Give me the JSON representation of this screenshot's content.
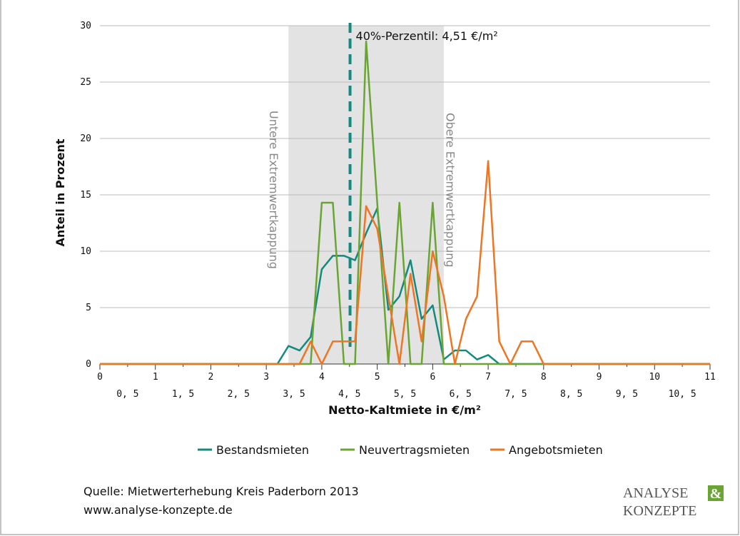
{
  "chart_data": {
    "type": "line",
    "x": [
      0,
      3.0,
      3.2,
      3.4,
      3.6,
      3.8,
      4.0,
      4.2,
      4.4,
      4.6,
      4.8,
      5.0,
      5.2,
      5.4,
      5.6,
      5.8,
      6.0,
      6.2,
      6.4,
      6.6,
      6.8,
      7.0,
      7.2,
      7.4,
      7.6,
      7.8,
      8.0,
      11
    ],
    "series": [
      {
        "name": "Bestandsmieten",
        "color": "#138a7e",
        "values": [
          0,
          0,
          0,
          1.6,
          1.2,
          2.4,
          8.4,
          9.6,
          9.6,
          9.2,
          11.6,
          13.8,
          4.8,
          6,
          9.2,
          4,
          5.2,
          0.4,
          1.2,
          1.2,
          0.4,
          0.8,
          0,
          0,
          0,
          0,
          0,
          0
        ]
      },
      {
        "name": "Neuvertragsmieten",
        "color": "#6aa534",
        "values": [
          0,
          0,
          0,
          0,
          0,
          0,
          14.3,
          14.3,
          0,
          0,
          28.6,
          14.3,
          0,
          14.3,
          0,
          0,
          14.3,
          0,
          0,
          0,
          0,
          0,
          0,
          0,
          0,
          0,
          0,
          0
        ]
      },
      {
        "name": "Angebotsmieten",
        "color": "#ee7623",
        "values": [
          0,
          0,
          0,
          0,
          0,
          2,
          0,
          2,
          2,
          2,
          14,
          12,
          6,
          0,
          8,
          2,
          10,
          6,
          0,
          4,
          6,
          18,
          2,
          0,
          2,
          2,
          0,
          0
        ]
      }
    ],
    "xlim": [
      0,
      11
    ],
    "ylim": [
      0,
      30
    ],
    "yticks": [
      0,
      5,
      10,
      15,
      20,
      25,
      30
    ],
    "xticks": [
      0,
      {
        "value": 0.5,
        "label": "0, 5"
      },
      1,
      {
        "value": 1.5,
        "label": "1, 5"
      },
      2,
      {
        "value": 2.5,
        "label": "2, 5"
      },
      3,
      {
        "value": 3.5,
        "label": "3, 5"
      },
      4,
      {
        "value": 4.5,
        "label": "4, 5"
      },
      5,
      {
        "value": 5.5,
        "label": "5, 5"
      },
      6,
      {
        "value": 6.5,
        "label": "6, 5"
      },
      7,
      {
        "value": 7.5,
        "label": "7, 5"
      },
      8,
      {
        "value": 8.5,
        "label": "8, 5"
      },
      9,
      {
        "value": 9.5,
        "label": "9, 5"
      },
      10,
      {
        "value": 10.5,
        "label": "10, 5"
      },
      11
    ],
    "grid": true,
    "x_label": "Netto-Kaltmiete in €/m²",
    "y_label": "Anteil in Prozent",
    "band": [
      3.4,
      6.2
    ],
    "band_labels": [
      "Untere Extremwertkappung",
      "Obere Extremwertkappung"
    ],
    "marker_line": {
      "value": 4.51,
      "label": "40%-Perzentil: 4,51 €/m²",
      "color": "#138a7e"
    }
  },
  "footer": {
    "source": "Quelle: Mietwerterhebung Kreis Paderborn 2013",
    "url": "www.analyse-konzepte.de"
  },
  "logo": {
    "line1": "ANALYSE",
    "amp": "&",
    "line2": "KONZEPTE"
  }
}
